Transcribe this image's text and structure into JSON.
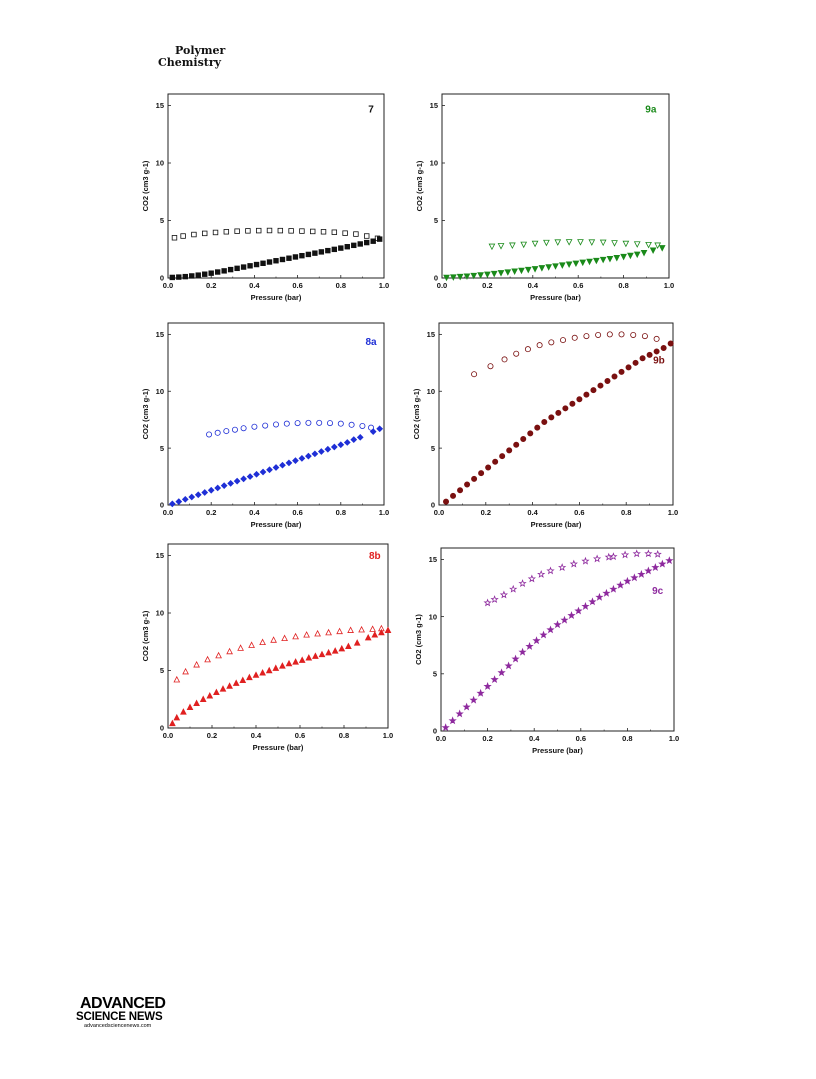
{
  "journal": {
    "line1": "Polymer",
    "line2": "Chemistry"
  },
  "footer": {
    "brand_line1": "ADVANCED",
    "brand_line2": "SCIENCE NEWS",
    "url": "advancedsciencenews.com"
  },
  "chart_data": [
    {
      "type": "scatter",
      "panel_label": "7",
      "label_color": "#111111",
      "color": "#111111",
      "xlabel": "Pressure (bar)",
      "ylabel": "CO2 (cm3 g-1)",
      "xlim": [
        0.0,
        1.0
      ],
      "ylim": [
        0,
        16
      ],
      "xticks": [
        "0.0",
        "0.2",
        "0.4",
        "0.6",
        "0.8",
        "1.0"
      ],
      "yticks": [
        "0",
        "5",
        "10",
        "15"
      ],
      "series": [
        {
          "role": "adsorption",
          "marker": "square",
          "filled": true,
          "x": [
            0.02,
            0.05,
            0.08,
            0.11,
            0.14,
            0.17,
            0.2,
            0.23,
            0.26,
            0.29,
            0.32,
            0.35,
            0.38,
            0.41,
            0.44,
            0.47,
            0.5,
            0.53,
            0.56,
            0.59,
            0.62,
            0.65,
            0.68,
            0.71,
            0.74,
            0.77,
            0.8,
            0.83,
            0.86,
            0.89,
            0.92,
            0.95,
            0.98
          ],
          "y": [
            0.05,
            0.08,
            0.12,
            0.18,
            0.25,
            0.33,
            0.42,
            0.52,
            0.62,
            0.73,
            0.84,
            0.95,
            1.06,
            1.17,
            1.28,
            1.39,
            1.5,
            1.61,
            1.72,
            1.83,
            1.94,
            2.05,
            2.16,
            2.27,
            2.38,
            2.49,
            2.6,
            2.72,
            2.84,
            2.96,
            3.08,
            3.2,
            3.38
          ]
        },
        {
          "role": "desorption",
          "marker": "square",
          "filled": false,
          "x": [
            0.03,
            0.07,
            0.12,
            0.17,
            0.22,
            0.27,
            0.32,
            0.37,
            0.42,
            0.47,
            0.52,
            0.57,
            0.62,
            0.67,
            0.72,
            0.77,
            0.82,
            0.87,
            0.92,
            0.97
          ],
          "y": [
            3.5,
            3.65,
            3.78,
            3.88,
            3.96,
            4.02,
            4.07,
            4.1,
            4.12,
            4.13,
            4.12,
            4.1,
            4.08,
            4.05,
            4.02,
            3.98,
            3.9,
            3.82,
            3.65,
            3.45
          ]
        }
      ]
    },
    {
      "type": "scatter",
      "panel_label": "9a",
      "label_color": "#1a8a1a",
      "color": "#1a8a1a",
      "xlabel": "Pressure (bar)",
      "ylabel": "CO2 (cm3 g-1)",
      "xlim": [
        0.0,
        1.0
      ],
      "ylim": [
        0,
        16
      ],
      "xticks": [
        "0.0",
        "0.2",
        "0.4",
        "0.6",
        "0.8",
        "1.0"
      ],
      "yticks": [
        "0",
        "5",
        "10",
        "15"
      ],
      "series": [
        {
          "role": "adsorption",
          "marker": "triangle-down",
          "filled": true,
          "x": [
            0.02,
            0.05,
            0.08,
            0.11,
            0.14,
            0.17,
            0.2,
            0.23,
            0.26,
            0.29,
            0.32,
            0.35,
            0.38,
            0.41,
            0.44,
            0.47,
            0.5,
            0.53,
            0.56,
            0.59,
            0.62,
            0.65,
            0.68,
            0.71,
            0.74,
            0.77,
            0.8,
            0.83,
            0.86,
            0.89,
            0.93,
            0.97
          ],
          "y": [
            0.05,
            0.08,
            0.12,
            0.16,
            0.21,
            0.26,
            0.32,
            0.38,
            0.45,
            0.52,
            0.59,
            0.66,
            0.73,
            0.8,
            0.88,
            0.96,
            1.04,
            1.12,
            1.2,
            1.28,
            1.36,
            1.44,
            1.52,
            1.6,
            1.68,
            1.76,
            1.86,
            1.96,
            2.06,
            2.2,
            2.42,
            2.62
          ]
        },
        {
          "role": "desorption",
          "marker": "triangle-down",
          "filled": false,
          "x": [
            0.22,
            0.26,
            0.31,
            0.36,
            0.41,
            0.46,
            0.51,
            0.56,
            0.61,
            0.66,
            0.71,
            0.76,
            0.81,
            0.86,
            0.91,
            0.95
          ],
          "y": [
            2.75,
            2.8,
            2.85,
            2.92,
            3.0,
            3.08,
            3.12,
            3.14,
            3.14,
            3.12,
            3.1,
            3.05,
            3.0,
            2.95,
            2.9,
            2.85
          ]
        }
      ]
    },
    {
      "type": "scatter",
      "panel_label": "8a",
      "label_color": "#1f2fd6",
      "color": "#1f2fd6",
      "xlabel": "Pressure (bar)",
      "ylabel": "CO2 (cm3 g-1)",
      "xlim": [
        0.0,
        1.0
      ],
      "ylim": [
        0,
        16
      ],
      "xticks": [
        "0.0",
        "0.2",
        "0.4",
        "0.6",
        "0.8",
        "1.0"
      ],
      "yticks": [
        "0",
        "5",
        "10",
        "15"
      ],
      "series": [
        {
          "role": "adsorption",
          "marker": "diamond",
          "filled": true,
          "x": [
            0.02,
            0.05,
            0.08,
            0.11,
            0.14,
            0.17,
            0.2,
            0.23,
            0.26,
            0.29,
            0.32,
            0.35,
            0.38,
            0.41,
            0.44,
            0.47,
            0.5,
            0.53,
            0.56,
            0.59,
            0.62,
            0.65,
            0.68,
            0.71,
            0.74,
            0.77,
            0.8,
            0.83,
            0.86,
            0.89,
            0.95,
            0.98
          ],
          "y": [
            0.1,
            0.3,
            0.5,
            0.7,
            0.9,
            1.1,
            1.3,
            1.5,
            1.7,
            1.9,
            2.1,
            2.3,
            2.5,
            2.7,
            2.9,
            3.1,
            3.3,
            3.5,
            3.7,
            3.9,
            4.1,
            4.3,
            4.5,
            4.7,
            4.9,
            5.1,
            5.3,
            5.5,
            5.75,
            5.95,
            6.45,
            6.7
          ]
        },
        {
          "role": "desorption",
          "marker": "circle",
          "filled": false,
          "x": [
            0.19,
            0.23,
            0.27,
            0.31,
            0.35,
            0.4,
            0.45,
            0.5,
            0.55,
            0.6,
            0.65,
            0.7,
            0.75,
            0.8,
            0.85,
            0.9,
            0.94
          ],
          "y": [
            6.2,
            6.35,
            6.5,
            6.62,
            6.75,
            6.88,
            6.98,
            7.08,
            7.15,
            7.2,
            7.22,
            7.22,
            7.2,
            7.15,
            7.05,
            6.95,
            6.8
          ]
        }
      ]
    },
    {
      "type": "scatter",
      "panel_label": "9b",
      "label_color": "#7a1010",
      "color": "#7a1010",
      "xlabel": "Pressure (bar)",
      "ylabel": "CO2 (cm3 g-1)",
      "xlim": [
        0.0,
        1.0
      ],
      "ylim": [
        0,
        16
      ],
      "xticks": [
        "0.0",
        "0.2",
        "0.4",
        "0.6",
        "0.8",
        "1.0"
      ],
      "yticks": [
        "0",
        "5",
        "10",
        "15"
      ],
      "series": [
        {
          "role": "adsorption",
          "marker": "circle",
          "filled": true,
          "x": [
            0.03,
            0.06,
            0.09,
            0.12,
            0.15,
            0.18,
            0.21,
            0.24,
            0.27,
            0.3,
            0.33,
            0.36,
            0.39,
            0.42,
            0.45,
            0.48,
            0.51,
            0.54,
            0.57,
            0.6,
            0.63,
            0.66,
            0.69,
            0.72,
            0.75,
            0.78,
            0.81,
            0.84,
            0.87,
            0.9,
            0.93,
            0.96,
            0.99
          ],
          "y": [
            0.3,
            0.8,
            1.3,
            1.8,
            2.3,
            2.8,
            3.3,
            3.8,
            4.3,
            4.8,
            5.3,
            5.8,
            6.3,
            6.8,
            7.3,
            7.7,
            8.1,
            8.5,
            8.9,
            9.3,
            9.7,
            10.1,
            10.5,
            10.9,
            11.3,
            11.7,
            12.1,
            12.5,
            12.9,
            13.2,
            13.5,
            13.8,
            14.2
          ]
        },
        {
          "role": "desorption",
          "marker": "circle",
          "filled": false,
          "x": [
            0.15,
            0.22,
            0.28,
            0.33,
            0.38,
            0.43,
            0.48,
            0.53,
            0.58,
            0.63,
            0.68,
            0.73,
            0.78,
            0.83,
            0.88,
            0.93
          ],
          "y": [
            11.5,
            12.2,
            12.8,
            13.3,
            13.7,
            14.05,
            14.3,
            14.5,
            14.7,
            14.85,
            14.95,
            15.0,
            15.0,
            14.95,
            14.85,
            14.6
          ]
        }
      ]
    },
    {
      "type": "scatter",
      "panel_label": "8b",
      "label_color": "#e02020",
      "color": "#e02020",
      "xlabel": "Pressure (bar)",
      "ylabel": "CO2 (cm3 g-1)",
      "xlim": [
        0.0,
        1.0
      ],
      "ylim": [
        0,
        16
      ],
      "xticks": [
        "0.0",
        "0.2",
        "0.4",
        "0.6",
        "0.8",
        "1.0"
      ],
      "yticks": [
        "0",
        "5",
        "10",
        "15"
      ],
      "series": [
        {
          "role": "adsorption",
          "marker": "triangle-up",
          "filled": true,
          "x": [
            0.02,
            0.04,
            0.07,
            0.1,
            0.13,
            0.16,
            0.19,
            0.22,
            0.25,
            0.28,
            0.31,
            0.34,
            0.37,
            0.4,
            0.43,
            0.46,
            0.49,
            0.52,
            0.55,
            0.58,
            0.61,
            0.64,
            0.67,
            0.7,
            0.73,
            0.76,
            0.79,
            0.82,
            0.86,
            0.91,
            0.94,
            0.97,
            1.0
          ],
          "y": [
            0.4,
            0.9,
            1.4,
            1.8,
            2.15,
            2.5,
            2.8,
            3.1,
            3.4,
            3.65,
            3.9,
            4.15,
            4.4,
            4.6,
            4.8,
            5.0,
            5.2,
            5.4,
            5.6,
            5.75,
            5.9,
            6.1,
            6.25,
            6.4,
            6.55,
            6.7,
            6.9,
            7.1,
            7.4,
            7.85,
            8.1,
            8.3,
            8.5
          ]
        },
        {
          "role": "desorption",
          "marker": "triangle-up",
          "filled": false,
          "x": [
            0.04,
            0.08,
            0.13,
            0.18,
            0.23,
            0.28,
            0.33,
            0.38,
            0.43,
            0.48,
            0.53,
            0.58,
            0.63,
            0.68,
            0.73,
            0.78,
            0.83,
            0.88,
            0.93,
            0.97
          ],
          "y": [
            4.2,
            4.9,
            5.5,
            5.95,
            6.3,
            6.65,
            6.95,
            7.2,
            7.45,
            7.65,
            7.8,
            7.95,
            8.1,
            8.2,
            8.3,
            8.4,
            8.5,
            8.55,
            8.6,
            8.65
          ]
        }
      ]
    },
    {
      "type": "scatter",
      "panel_label": "9c",
      "label_color": "#8e2a9e",
      "color": "#8e2a9e",
      "xlabel": "Pressure (bar)",
      "ylabel": "CO2 (cm3 g-1)",
      "xlim": [
        0.0,
        1.0
      ],
      "ylim": [
        0,
        16
      ],
      "xticks": [
        "0.0",
        "0.2",
        "0.4",
        "0.6",
        "0.8",
        "1.0"
      ],
      "yticks": [
        "0",
        "5",
        "10",
        "15"
      ],
      "series": [
        {
          "role": "adsorption",
          "marker": "star",
          "filled": true,
          "x": [
            0.02,
            0.05,
            0.08,
            0.11,
            0.14,
            0.17,
            0.2,
            0.23,
            0.26,
            0.29,
            0.32,
            0.35,
            0.38,
            0.41,
            0.44,
            0.47,
            0.5,
            0.53,
            0.56,
            0.59,
            0.62,
            0.65,
            0.68,
            0.71,
            0.74,
            0.77,
            0.8,
            0.83,
            0.86,
            0.89,
            0.92,
            0.95,
            0.98
          ],
          "y": [
            0.3,
            0.9,
            1.5,
            2.1,
            2.7,
            3.3,
            3.9,
            4.5,
            5.1,
            5.7,
            6.3,
            6.9,
            7.4,
            7.9,
            8.4,
            8.85,
            9.3,
            9.7,
            10.1,
            10.5,
            10.9,
            11.3,
            11.7,
            12.05,
            12.4,
            12.75,
            13.1,
            13.4,
            13.7,
            14.0,
            14.3,
            14.6,
            14.9
          ]
        },
        {
          "role": "desorption",
          "marker": "star",
          "filled": false,
          "x": [
            0.2,
            0.23,
            0.27,
            0.31,
            0.35,
            0.39,
            0.43,
            0.47,
            0.52,
            0.57,
            0.62,
            0.67,
            0.72,
            0.74,
            0.79,
            0.84,
            0.89,
            0.93
          ],
          "y": [
            11.2,
            11.5,
            11.9,
            12.4,
            12.9,
            13.3,
            13.7,
            14.0,
            14.3,
            14.6,
            14.85,
            15.05,
            15.2,
            15.25,
            15.4,
            15.5,
            15.5,
            15.45
          ]
        }
      ]
    }
  ]
}
